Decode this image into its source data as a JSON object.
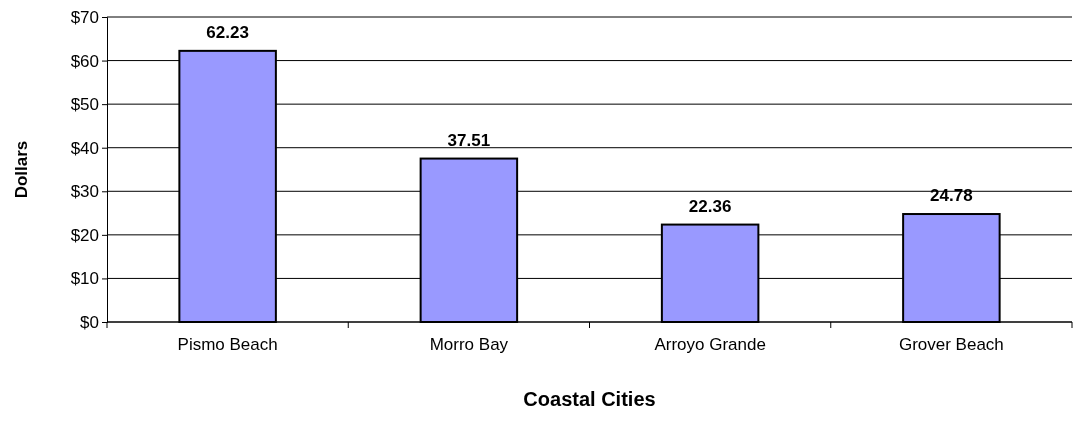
{
  "chart_data": {
    "type": "bar",
    "xlabel": "Coastal Cities",
    "ylabel": "Dollars",
    "categories": [
      "Pismo Beach",
      "Morro Bay",
      "Arroyo Grande",
      "Grover Beach"
    ],
    "values": [
      62.23,
      37.51,
      22.36,
      24.78
    ],
    "color": "#9999ff",
    "data_labels": true,
    "grid": "y",
    "ylim": [
      0,
      70
    ],
    "yticks": [
      {
        "value": 0,
        "label": "$0"
      },
      {
        "value": 10,
        "label": "$10"
      },
      {
        "value": 20,
        "label": "$20"
      },
      {
        "value": 30,
        "label": "$30"
      },
      {
        "value": 40,
        "label": "$40"
      },
      {
        "value": 50,
        "label": "$50"
      },
      {
        "value": 60,
        "label": "$60"
      },
      {
        "value": 70,
        "label": "$70"
      }
    ]
  }
}
